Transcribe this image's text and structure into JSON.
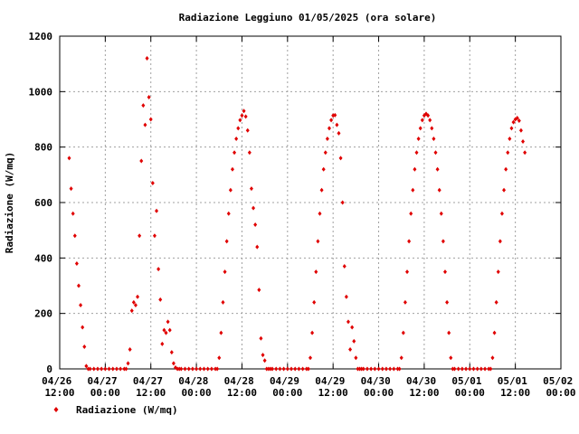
{
  "chart_data": {
    "type": "scatter",
    "title": "Radiazione Leggiuno 01/05/2025 (ora solare)",
    "ylabel": "Radiazione (W/mq)",
    "grid": true,
    "legend": "bottom-left",
    "ylim": [
      0,
      1200
    ],
    "yticks": [
      0,
      200,
      400,
      600,
      800,
      1000,
      1200
    ],
    "xlim": [
      "04/26 12:00",
      "05/02 00:00"
    ],
    "xticks": [
      "04/26 12:00",
      "04/27 00:00",
      "04/27 12:00",
      "04/28 00:00",
      "04/28 12:00",
      "04/29 00:00",
      "04/29 12:00",
      "04/30 00:00",
      "04/30 12:00",
      "05/01 00:00",
      "05/01 12:00",
      "05/02 00:00"
    ],
    "x": [
      "04/26 14:30",
      "04/26 15:00",
      "04/26 15:30",
      "04/26 16:00",
      "04/26 16:30",
      "04/26 17:00",
      "04/26 17:30",
      "04/26 18:00",
      "04/26 18:30",
      "04/26 19:00",
      "04/26 19:30",
      "04/26 20:00",
      "04/26 21:00",
      "04/26 22:00",
      "04/26 23:00",
      "04/27 00:00",
      "04/27 01:00",
      "04/27 02:00",
      "04/27 03:00",
      "04/27 04:00",
      "04/27 05:00",
      "04/27 05:30",
      "04/27 06:00",
      "04/27 06:30",
      "04/27 07:00",
      "04/27 07:30",
      "04/27 08:00",
      "04/27 08:30",
      "04/27 09:00",
      "04/27 09:30",
      "04/27 10:00",
      "04/27 10:30",
      "04/27 11:00",
      "04/27 11:30",
      "04/27 12:00",
      "04/27 12:30",
      "04/27 13:00",
      "04/27 13:30",
      "04/27 14:00",
      "04/27 14:30",
      "04/27 15:00",
      "04/27 15:30",
      "04/27 16:00",
      "04/27 16:30",
      "04/27 17:00",
      "04/27 17:30",
      "04/27 18:00",
      "04/27 18:30",
      "04/27 19:00",
      "04/27 19:30",
      "04/27 20:00",
      "04/27 21:00",
      "04/27 22:00",
      "04/27 23:00",
      "04/28 00:00",
      "04/28 01:00",
      "04/28 02:00",
      "04/28 03:00",
      "04/28 04:00",
      "04/28 05:00",
      "04/28 05:30",
      "04/28 06:00",
      "04/28 06:30",
      "04/28 07:00",
      "04/28 07:30",
      "04/28 08:00",
      "04/28 08:30",
      "04/28 09:00",
      "04/28 09:30",
      "04/28 10:00",
      "04/28 10:30",
      "04/28 11:00",
      "04/28 11:30",
      "04/28 12:00",
      "04/28 12:30",
      "04/28 13:00",
      "04/28 13:30",
      "04/28 14:00",
      "04/28 14:30",
      "04/28 15:00",
      "04/28 15:30",
      "04/28 16:00",
      "04/28 16:30",
      "04/28 17:00",
      "04/28 17:30",
      "04/28 18:00",
      "04/28 18:30",
      "04/28 19:00",
      "04/28 19:30",
      "04/28 20:00",
      "04/28 21:00",
      "04/28 22:00",
      "04/28 23:00",
      "04/29 00:00",
      "04/29 01:00",
      "04/29 02:00",
      "04/29 03:00",
      "04/29 04:00",
      "04/29 05:00",
      "04/29 05:30",
      "04/29 06:00",
      "04/29 06:30",
      "04/29 07:00",
      "04/29 07:30",
      "04/29 08:00",
      "04/29 08:30",
      "04/29 09:00",
      "04/29 09:30",
      "04/29 10:00",
      "04/29 10:30",
      "04/29 11:00",
      "04/29 11:30",
      "04/29 12:00",
      "04/29 12:30",
      "04/29 13:00",
      "04/29 13:30",
      "04/29 14:00",
      "04/29 14:30",
      "04/29 15:00",
      "04/29 15:30",
      "04/29 16:00",
      "04/29 16:30",
      "04/29 17:00",
      "04/29 17:30",
      "04/29 18:00",
      "04/29 18:30",
      "04/29 19:00",
      "04/29 19:30",
      "04/29 20:00",
      "04/29 21:00",
      "04/29 22:00",
      "04/29 23:00",
      "04/30 00:00",
      "04/30 01:00",
      "04/30 02:00",
      "04/30 03:00",
      "04/30 04:00",
      "04/30 05:00",
      "04/30 05:30",
      "04/30 06:00",
      "04/30 06:30",
      "04/30 07:00",
      "04/30 07:30",
      "04/30 08:00",
      "04/30 08:30",
      "04/30 09:00",
      "04/30 09:30",
      "04/30 10:00",
      "04/30 10:30",
      "04/30 11:00",
      "04/30 11:30",
      "04/30 12:00",
      "04/30 12:30",
      "04/30 13:00",
      "04/30 13:30",
      "04/30 14:00",
      "04/30 14:30",
      "04/30 15:00",
      "04/30 15:30",
      "04/30 16:00",
      "04/30 16:30",
      "04/30 17:00",
      "04/30 17:30",
      "04/30 18:00",
      "04/30 18:30",
      "04/30 19:00",
      "04/30 19:30",
      "04/30 20:00",
      "04/30 21:00",
      "04/30 22:00",
      "04/30 23:00",
      "05/01 00:00",
      "05/01 01:00",
      "05/01 02:00",
      "05/01 03:00",
      "05/01 04:00",
      "05/01 05:00",
      "05/01 05:30",
      "05/01 06:00",
      "05/01 06:30",
      "05/01 07:00",
      "05/01 07:30",
      "05/01 08:00",
      "05/01 08:30",
      "05/01 09:00",
      "05/01 09:30",
      "05/01 10:00",
      "05/01 10:30",
      "05/01 11:00",
      "05/01 11:30",
      "05/01 12:00",
      "05/01 12:30",
      "05/01 13:00",
      "05/01 13:30",
      "05/01 14:00",
      "05/01 14:30"
    ],
    "series": [
      {
        "name": "Radiazione (W/mq)",
        "color": "#e00000",
        "values": [
          760,
          650,
          560,
          480,
          380,
          300,
          230,
          150,
          80,
          10,
          0,
          0,
          0,
          0,
          0,
          0,
          0,
          0,
          0,
          0,
          0,
          0,
          20,
          70,
          210,
          240,
          230,
          260,
          480,
          750,
          950,
          880,
          1120,
          980,
          900,
          670,
          480,
          570,
          360,
          250,
          90,
          140,
          130,
          170,
          140,
          60,
          20,
          5,
          0,
          0,
          0,
          0,
          0,
          0,
          0,
          0,
          0,
          0,
          0,
          0,
          0,
          40,
          130,
          240,
          350,
          460,
          560,
          645,
          720,
          780,
          830,
          868,
          897,
          914,
          930,
          910,
          860,
          780,
          650,
          580,
          520,
          440,
          285,
          110,
          50,
          30,
          0,
          0,
          0,
          0,
          0,
          0,
          0,
          0,
          0,
          0,
          0,
          0,
          0,
          0,
          40,
          130,
          240,
          350,
          460,
          560,
          645,
          720,
          780,
          830,
          868,
          897,
          914,
          915,
          880,
          850,
          760,
          600,
          370,
          260,
          170,
          70,
          150,
          100,
          40,
          0,
          0,
          0,
          0,
          0,
          0,
          0,
          0,
          0,
          0,
          0,
          0,
          0,
          0,
          40,
          130,
          240,
          350,
          460,
          560,
          645,
          720,
          780,
          830,
          868,
          897,
          914,
          920,
          914,
          897,
          868,
          830,
          780,
          720,
          645,
          560,
          460,
          350,
          240,
          130,
          40,
          0,
          0,
          0,
          0,
          0,
          0,
          0,
          0,
          0,
          0,
          0,
          0,
          40,
          130,
          240,
          350,
          460,
          560,
          645,
          720,
          780,
          830,
          868,
          890,
          900,
          905,
          895,
          860,
          820,
          780
        ]
      }
    ]
  }
}
